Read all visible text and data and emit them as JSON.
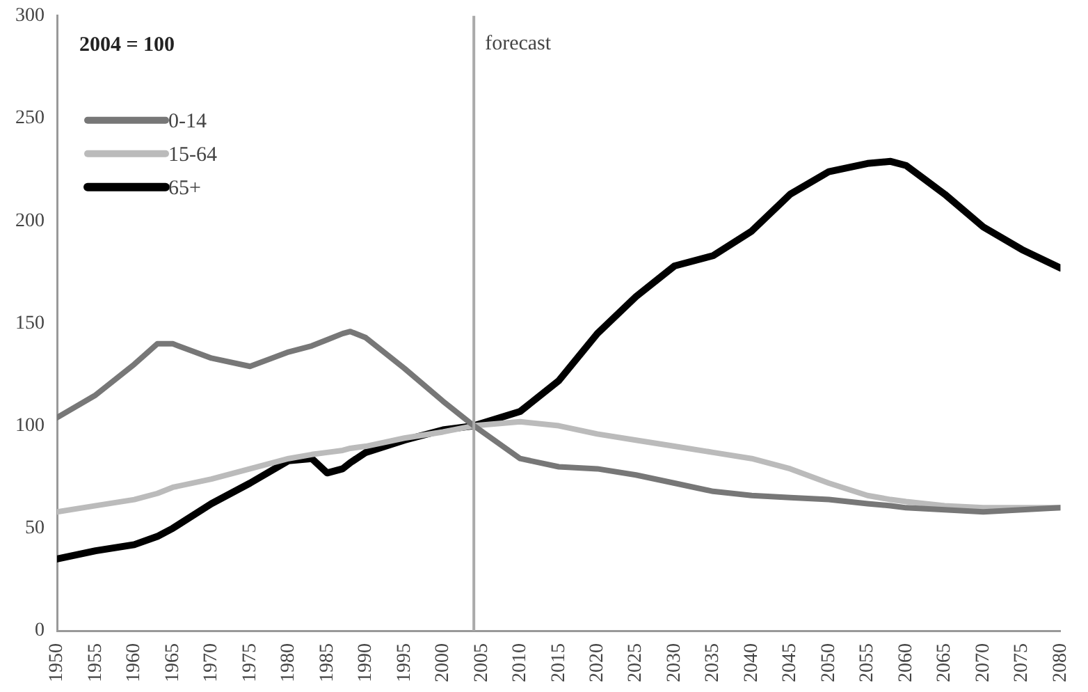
{
  "chart_data": {
    "type": "line",
    "annotations": [
      "2004 = 100"
    ],
    "x": [
      1950,
      1955,
      1960,
      1963,
      1965,
      1970,
      1975,
      1980,
      1983,
      1985,
      1987,
      1988,
      1990,
      1995,
      2000,
      2004,
      2010,
      2015,
      2020,
      2025,
      2030,
      2035,
      2040,
      2045,
      2050,
      2055,
      2058,
      2060,
      2065,
      2070,
      2075,
      2080
    ],
    "series": [
      {
        "name": "0-14",
        "color": "#777777",
        "values": [
          104,
          115,
          130,
          140,
          140,
          133,
          129,
          136,
          139,
          142,
          145,
          146,
          143,
          128,
          112,
          100,
          84,
          80,
          79,
          76,
          72,
          68,
          66,
          65,
          64,
          62,
          61,
          60,
          59,
          58,
          59,
          60
        ]
      },
      {
        "name": "15-64",
        "color": "#bbbbbb",
        "values": [
          58,
          61,
          64,
          67,
          70,
          74,
          79,
          84,
          86,
          87,
          88,
          89,
          90,
          94,
          97,
          100,
          102,
          100,
          96,
          93,
          90,
          87,
          84,
          79,
          72,
          66,
          64,
          63,
          61,
          60,
          60,
          60
        ]
      },
      {
        "name": "65+",
        "color": "#000000",
        "values": [
          35,
          39,
          42,
          46,
          50,
          62,
          72,
          83,
          84,
          77,
          79,
          82,
          87,
          93,
          98,
          100,
          107,
          122,
          145,
          163,
          178,
          183,
          195,
          213,
          224,
          228,
          229,
          227,
          213,
          197,
          186,
          177
        ]
      }
    ],
    "xlim": [
      1950,
      2080
    ],
    "xticks": [
      1950,
      1955,
      1960,
      1965,
      1970,
      1975,
      1980,
      1985,
      1990,
      1995,
      2000,
      2005,
      2010,
      2015,
      2020,
      2025,
      2030,
      2035,
      2040,
      2045,
      2050,
      2055,
      2060,
      2065,
      2070,
      2075,
      2080
    ],
    "ylim": [
      0,
      300
    ],
    "yticks": [
      0,
      50,
      100,
      150,
      200,
      250,
      300
    ],
    "ref_lines": [
      {
        "axis": "x",
        "value": 2004,
        "label": "forecast",
        "color": "#aaaaaa"
      }
    ],
    "grid": false,
    "legend": "top left",
    "marker": "none",
    "line_style": "solid"
  }
}
